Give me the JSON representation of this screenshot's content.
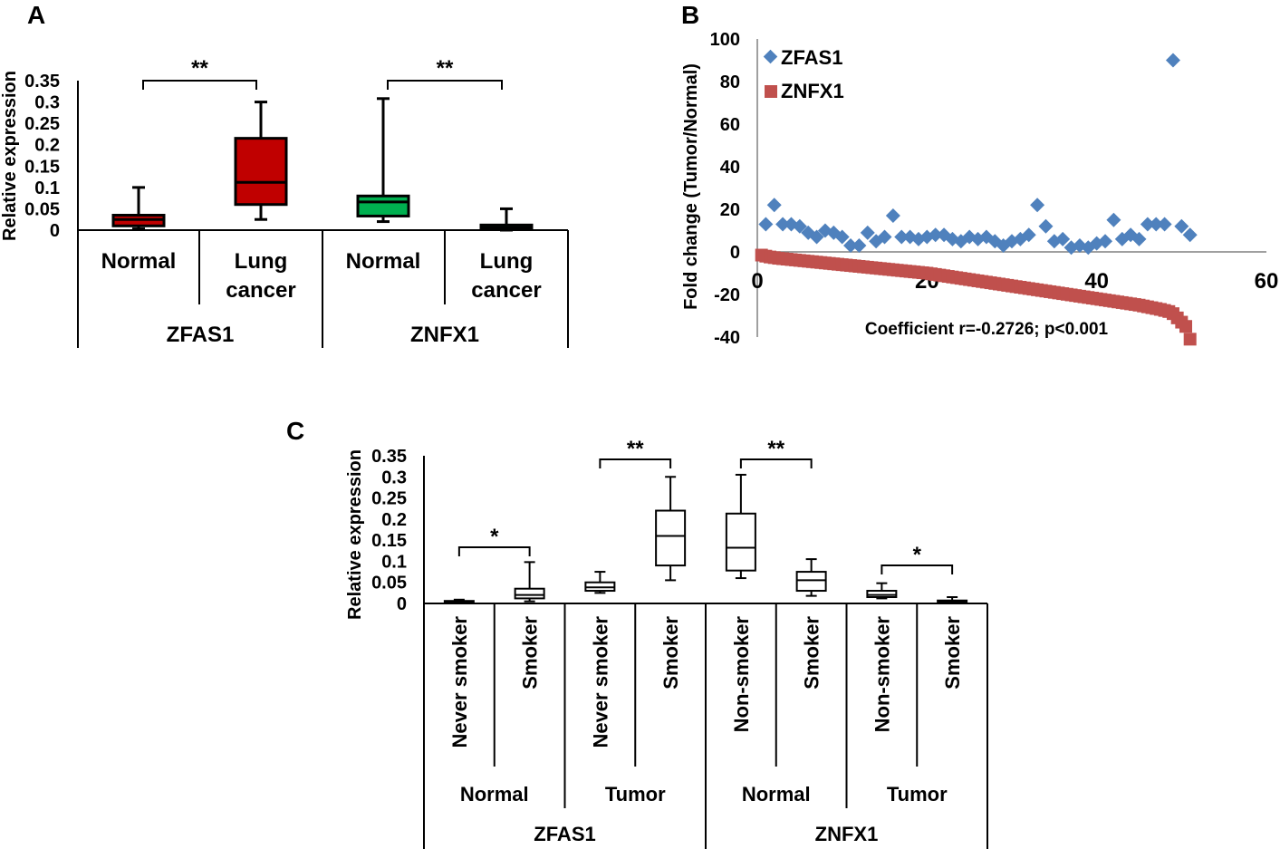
{
  "panel_labels": [
    "A",
    "B",
    "C"
  ],
  "colors": {
    "zfas1_box": "#c00000",
    "znfx1_box": "#00b050",
    "scatter_zfas1": "#4f81bd",
    "scatter_znfx1": "#c0504d",
    "axis": "#000000"
  },
  "chart_data": [
    {
      "id": "A",
      "type": "box",
      "ylabel": "Relative expression",
      "yticks": [
        "0.35",
        "0.3",
        "0.25",
        "0.2",
        "0.15",
        "0.1",
        "0.05",
        "0"
      ],
      "ylim": [
        0,
        0.35
      ],
      "groups": [
        {
          "gene": "ZFAS1",
          "categories": [
            "Normal",
            "Lung cancer"
          ]
        },
        {
          "gene": "ZNFX1",
          "categories": [
            "Normal",
            "Lung cancer"
          ]
        }
      ],
      "boxes": [
        {
          "gene": "ZFAS1",
          "category": "Normal",
          "min": 0.003,
          "q1": 0.01,
          "median": 0.025,
          "q3": 0.035,
          "max": 0.1,
          "color": "#c00000"
        },
        {
          "gene": "ZFAS1",
          "category": "Lung cancer",
          "min": 0.025,
          "q1": 0.06,
          "median": 0.112,
          "q3": 0.215,
          "max": 0.3,
          "color": "#c00000"
        },
        {
          "gene": "ZNFX1",
          "category": "Normal",
          "min": 0.02,
          "q1": 0.033,
          "median": 0.066,
          "q3": 0.08,
          "max": 0.308,
          "color": "#00b050"
        },
        {
          "gene": "ZNFX1",
          "category": "Lung cancer",
          "min": 0.0,
          "q1": 0.002,
          "median": 0.006,
          "q3": 0.012,
          "max": 0.05,
          "color": "#00b050"
        }
      ],
      "annotations": [
        {
          "text": "**",
          "from": 0,
          "to": 1
        },
        {
          "text": "**",
          "from": 2,
          "to": 3
        }
      ]
    },
    {
      "id": "B",
      "type": "scatter",
      "ylabel": "Fold change (Tumor/Normal)",
      "xlim": [
        0,
        60
      ],
      "ylim": [
        -40,
        100
      ],
      "xticks": [
        "0",
        "20",
        "40",
        "60"
      ],
      "yticks": [
        "100",
        "80",
        "60",
        "40",
        "20",
        "0",
        "-20",
        "-40"
      ],
      "annotation": "Coefficient r=-0.2726; p<0.001",
      "legend_position": "top-left",
      "series": [
        {
          "name": "ZFAS1",
          "marker": "diamond",
          "x": [
            1,
            2,
            3,
            4,
            5,
            6,
            7,
            8,
            9,
            10,
            11,
            12,
            13,
            14,
            15,
            16,
            17,
            18,
            19,
            20,
            21,
            22,
            23,
            24,
            25,
            26,
            27,
            28,
            29,
            30,
            31,
            32,
            33,
            34,
            35,
            36,
            37,
            38,
            39,
            40,
            41,
            42,
            43,
            44,
            45,
            46,
            47,
            48,
            49,
            50,
            51
          ],
          "y": [
            13,
            22,
            13,
            13,
            12,
            9,
            7,
            10,
            9,
            7,
            3,
            3,
            9,
            5,
            7,
            17,
            7,
            7,
            6,
            7,
            8,
            8,
            6,
            5,
            7,
            6,
            7,
            5,
            3,
            5,
            6,
            8,
            22,
            12,
            5,
            6,
            2,
            3,
            2,
            4,
            5,
            15,
            6,
            8,
            6,
            13,
            13,
            13,
            90,
            12,
            8
          ]
        },
        {
          "name": "ZNFX1",
          "marker": "square",
          "x": [
            0.5,
            1,
            1.5,
            2,
            2.5,
            3,
            3.5,
            4,
            4.5,
            5,
            5.5,
            6,
            6.5,
            7,
            7.5,
            8,
            8.5,
            9,
            9.5,
            10,
            10.5,
            11,
            11.5,
            12,
            12.5,
            13,
            13.5,
            14,
            14.5,
            15,
            15.5,
            16,
            16.5,
            17,
            17.5,
            18,
            18.5,
            19,
            19.5,
            20,
            20.5,
            21,
            21.5,
            22,
            22.5,
            23,
            23.5,
            24,
            24.5,
            25,
            25.5,
            26,
            26.5,
            27,
            27.5,
            28,
            28.5,
            29,
            29.5,
            30,
            30.5,
            31,
            31.5,
            32,
            32.5,
            33,
            33.5,
            34,
            34.5,
            35,
            35.5,
            36,
            36.5,
            37,
            37.5,
            38,
            38.5,
            39,
            39.5,
            40,
            40.5,
            41,
            41.5,
            42,
            42.5,
            43,
            43.5,
            44,
            44.5,
            45,
            45.5,
            46,
            46.5,
            47,
            47.5,
            48,
            48.5,
            49,
            49.5,
            50,
            50.5,
            51
          ],
          "y": [
            -1.5,
            -2,
            -2.4,
            -2.7,
            -3,
            -3.2,
            -3.4,
            -3.6,
            -3.8,
            -4,
            -4.2,
            -4.4,
            -4.6,
            -4.8,
            -5,
            -5.2,
            -5.4,
            -5.6,
            -5.8,
            -6,
            -6.2,
            -6.4,
            -6.6,
            -6.8,
            -7,
            -7.2,
            -7.4,
            -7.6,
            -7.8,
            -8,
            -8.2,
            -8.4,
            -8.6,
            -8.8,
            -9,
            -9.2,
            -9.4,
            -9.6,
            -9.8,
            -10,
            -10.3,
            -10.6,
            -10.9,
            -11.2,
            -11.5,
            -11.8,
            -12.1,
            -12.4,
            -12.7,
            -13,
            -13.3,
            -13.6,
            -13.9,
            -14.2,
            -14.5,
            -14.8,
            -15.1,
            -15.4,
            -15.7,
            -16,
            -16.3,
            -16.6,
            -16.9,
            -17.2,
            -17.5,
            -17.8,
            -18.1,
            -18.4,
            -18.7,
            -19,
            -19.3,
            -19.6,
            -19.9,
            -20.2,
            -20.5,
            -20.8,
            -21.1,
            -21.4,
            -21.7,
            -22,
            -22.3,
            -22.6,
            -22.9,
            -23.2,
            -23.5,
            -23.8,
            -24.1,
            -24.4,
            -24.7,
            -25,
            -25.4,
            -25.8,
            -26.2,
            -26.6,
            -27,
            -27.5,
            -28,
            -29,
            -31,
            -33,
            -35,
            -41
          ]
        }
      ]
    },
    {
      "id": "C",
      "type": "box",
      "ylabel": "Relative expression",
      "yticks": [
        "0.35",
        "0.3",
        "0.25",
        "0.2",
        "0.15",
        "0.1",
        "0.05",
        "0"
      ],
      "ylim": [
        0,
        0.35
      ],
      "categories": [
        "Never smoker",
        "Smoker",
        "Never smoker",
        "Smoker",
        "Non-smoker",
        "Smoker",
        "Non-smoker",
        "Smoker"
      ],
      "tissue_groups": [
        "Normal",
        "Tumor",
        "Normal",
        "Tumor"
      ],
      "genes": [
        "ZFAS1",
        "ZNFX1"
      ],
      "boxes": [
        {
          "min": 0.0,
          "q1": 0.002,
          "median": 0.004,
          "q3": 0.006,
          "max": 0.009
        },
        {
          "min": 0.005,
          "q1": 0.012,
          "median": 0.02,
          "q3": 0.035,
          "max": 0.098
        },
        {
          "min": 0.025,
          "q1": 0.03,
          "median": 0.038,
          "q3": 0.05,
          "max": 0.075
        },
        {
          "min": 0.055,
          "q1": 0.09,
          "median": 0.16,
          "q3": 0.22,
          "max": 0.3
        },
        {
          "min": 0.06,
          "q1": 0.078,
          "median": 0.132,
          "q3": 0.213,
          "max": 0.305
        },
        {
          "min": 0.018,
          "q1": 0.03,
          "median": 0.055,
          "q3": 0.075,
          "max": 0.105
        },
        {
          "min": 0.012,
          "q1": 0.015,
          "median": 0.02,
          "q3": 0.03,
          "max": 0.048
        },
        {
          "min": 0.0,
          "q1": 0.002,
          "median": 0.004,
          "q3": 0.007,
          "max": 0.015
        }
      ],
      "annotations": [
        {
          "text": "*",
          "from": 0,
          "to": 1
        },
        {
          "text": "**",
          "from": 2,
          "to": 3
        },
        {
          "text": "**",
          "from": 4,
          "to": 5
        },
        {
          "text": "*",
          "from": 6,
          "to": 7
        }
      ]
    }
  ]
}
